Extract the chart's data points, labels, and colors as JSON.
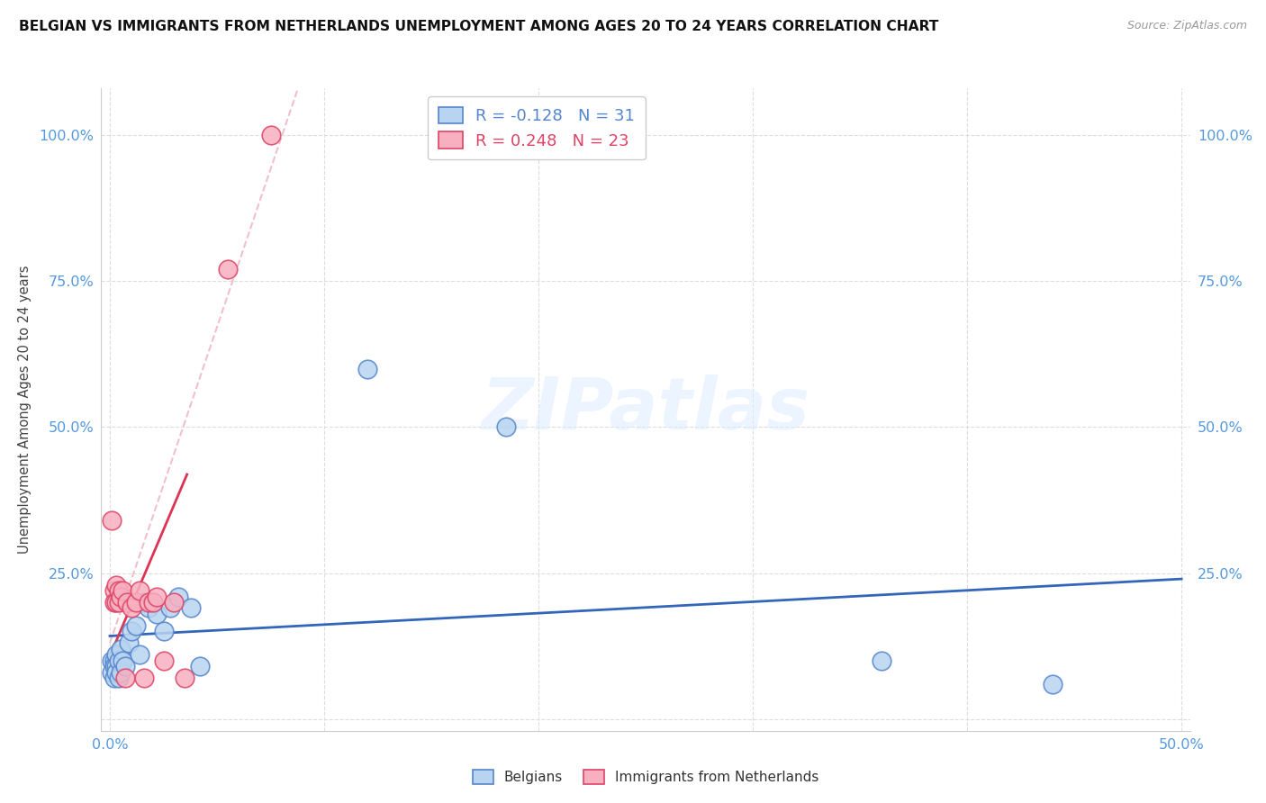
{
  "title": "BELGIAN VS IMMIGRANTS FROM NETHERLANDS UNEMPLOYMENT AMONG AGES 20 TO 24 YEARS CORRELATION CHART",
  "source": "Source: ZipAtlas.com",
  "ylabel": "Unemployment Among Ages 20 to 24 years",
  "xlim": [
    -0.004,
    0.504
  ],
  "ylim": [
    -0.02,
    1.08
  ],
  "x_ticks": [
    0.0,
    0.1,
    0.2,
    0.3,
    0.4,
    0.5
  ],
  "x_tick_labels_show": [
    "0.0%",
    "",
    "",
    "",
    "",
    "50.0%"
  ],
  "y_ticks": [
    0.0,
    0.25,
    0.5,
    0.75,
    1.0
  ],
  "y_tick_labels_show": [
    "",
    "25.0%",
    "50.0%",
    "75.0%",
    "100.0%"
  ],
  "belgians_x": [
    0.001,
    0.001,
    0.002,
    0.002,
    0.002,
    0.003,
    0.003,
    0.003,
    0.004,
    0.004,
    0.005,
    0.005,
    0.006,
    0.007,
    0.009,
    0.01,
    0.012,
    0.014,
    0.016,
    0.018,
    0.02,
    0.022,
    0.025,
    0.028,
    0.032,
    0.038,
    0.042,
    0.12,
    0.185,
    0.36,
    0.44
  ],
  "belgians_y": [
    0.1,
    0.08,
    0.1,
    0.09,
    0.07,
    0.11,
    0.09,
    0.08,
    0.1,
    0.07,
    0.12,
    0.08,
    0.1,
    0.09,
    0.13,
    0.15,
    0.16,
    0.11,
    0.2,
    0.19,
    0.2,
    0.18,
    0.15,
    0.19,
    0.21,
    0.19,
    0.09,
    0.6,
    0.5,
    0.1,
    0.06
  ],
  "netherlands_x": [
    0.001,
    0.002,
    0.002,
    0.003,
    0.003,
    0.004,
    0.004,
    0.005,
    0.006,
    0.007,
    0.008,
    0.01,
    0.012,
    0.014,
    0.016,
    0.018,
    0.02,
    0.022,
    0.025,
    0.03,
    0.035,
    0.055,
    0.075
  ],
  "netherlands_y": [
    0.34,
    0.22,
    0.2,
    0.23,
    0.2,
    0.22,
    0.2,
    0.21,
    0.22,
    0.07,
    0.2,
    0.19,
    0.2,
    0.22,
    0.07,
    0.2,
    0.2,
    0.21,
    0.1,
    0.2,
    0.07,
    0.77,
    1.0
  ],
  "belgians_R": -0.128,
  "belgians_N": 31,
  "netherlands_R": 0.248,
  "netherlands_N": 23,
  "belgian_scatter_face": "#b8d4f0",
  "belgian_scatter_edge": "#5585cc",
  "netherlands_scatter_face": "#f8b0c0",
  "netherlands_scatter_edge": "#dd4466",
  "belgian_line_color": "#3366bb",
  "netherlands_line_color": "#dd3355",
  "dashed_line_color": "#f0c0cc",
  "background_color": "#ffffff",
  "grid_color": "#dddddd",
  "tick_color": "#5599dd",
  "watermark_text": "ZIPatlas",
  "watermark_color": "#ddeeff"
}
